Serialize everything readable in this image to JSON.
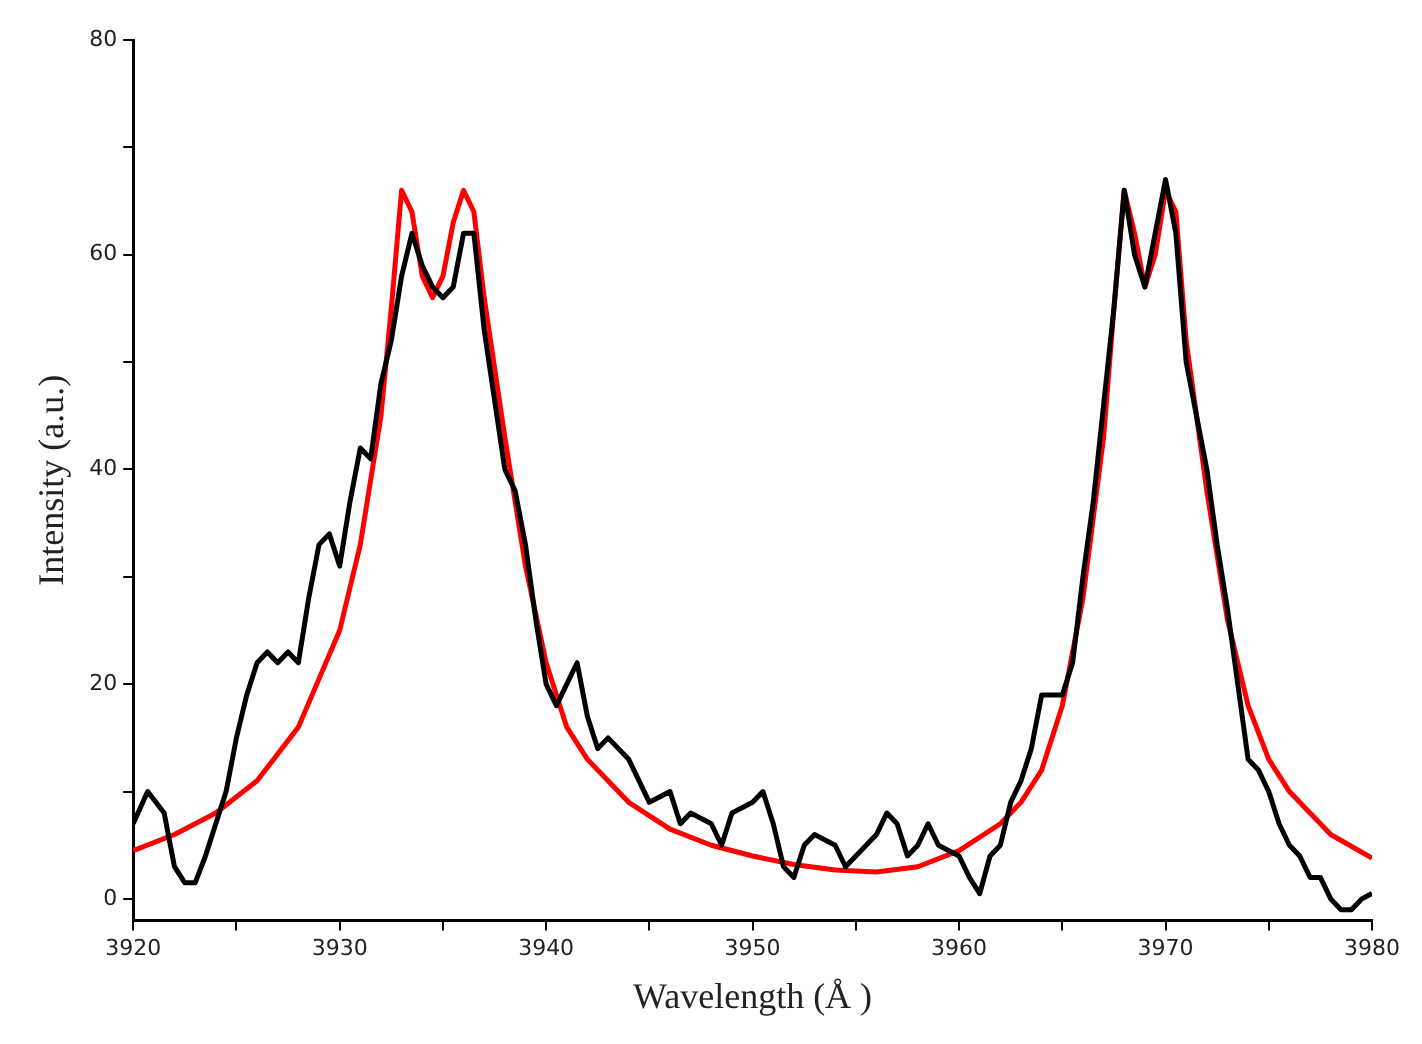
{
  "chart_data": {
    "type": "line",
    "xlabel": "Wavelength (Å )",
    "ylabel": "Intensity (a.u.)",
    "xlim": [
      3920,
      3980
    ],
    "ylim": [
      -2,
      80
    ],
    "xticks": [
      3920,
      {
        "value": 3925,
        "label": null
      },
      3930,
      {
        "value": 3935,
        "label": null
      },
      3940,
      {
        "value": 3945,
        "label": null
      },
      3950,
      {
        "value": 3955,
        "label": null
      },
      3960,
      {
        "value": 3965,
        "label": null
      },
      3970,
      {
        "value": 3975,
        "label": null
      },
      3980
    ],
    "yticks": [
      0,
      {
        "value": 10,
        "label": null
      },
      20,
      {
        "value": 30,
        "label": null
      },
      40,
      {
        "value": 50,
        "label": null
      },
      60,
      {
        "value": 70,
        "label": null
      },
      80
    ],
    "grid": false,
    "legend": false,
    "marker": "none",
    "line_style": "solid",
    "series": [
      {
        "color": "#000000",
        "x": [
          3920,
          3920.7,
          3921.5,
          3922,
          3922.5,
          3923,
          3923.5,
          3924,
          3924.5,
          3925,
          3925.5,
          3926,
          3926.5,
          3927,
          3927.5,
          3928,
          3928.5,
          3929,
          3929.5,
          3930,
          3930.5,
          3931,
          3931.5,
          3932,
          3932.5,
          3933,
          3933.5,
          3934,
          3934.5,
          3935,
          3935.5,
          3936,
          3936.5,
          3937,
          3938,
          3938.5,
          3939,
          3939.5,
          3940,
          3940.5,
          3941,
          3941.5,
          3942,
          3942.5,
          3943,
          3944,
          3945,
          3946,
          3946.5,
          3947,
          3948,
          3948.5,
          3949,
          3950,
          3950.5,
          3951,
          3951.5,
          3952,
          3952.5,
          3953,
          3954,
          3954.5,
          3955,
          3956,
          3956.5,
          3957,
          3957.5,
          3958,
          3958.5,
          3959,
          3960,
          3960.5,
          3961,
          3961.5,
          3962,
          3962.5,
          3963,
          3963.5,
          3964,
          3964.5,
          3965,
          3965.5,
          3966,
          3966.5,
          3967,
          3967.5,
          3968,
          3968.5,
          3969,
          3969.5,
          3970,
          3970.5,
          3971,
          3971.5,
          3972,
          3972.5,
          3973,
          3973.5,
          3974,
          3974.5,
          3975,
          3975.5,
          3976,
          3976.5,
          3977,
          3977.5,
          3978,
          3978.5,
          3979,
          3979.5,
          3980
        ],
        "values": [
          7,
          10,
          8,
          3,
          1.5,
          1.5,
          4,
          7,
          10,
          15,
          19,
          22,
          23,
          22,
          23,
          22,
          28,
          33,
          34,
          31,
          37,
          42,
          41,
          48,
          52,
          58,
          62,
          59,
          57,
          56,
          57,
          62,
          62,
          53,
          40,
          38,
          33,
          26,
          20,
          18,
          20,
          22,
          17,
          14,
          15,
          13,
          9,
          10,
          7,
          8,
          7,
          5,
          8,
          9,
          10,
          7,
          3,
          2,
          5,
          6,
          5,
          3,
          4,
          6,
          8,
          7,
          4,
          5,
          7,
          5,
          4,
          2,
          0.5,
          4,
          5,
          9,
          11,
          14,
          19,
          19,
          19,
          22,
          30,
          37,
          46,
          55,
          66,
          60,
          57,
          62,
          67,
          62,
          50,
          45,
          40,
          33,
          27,
          20,
          13,
          12,
          10,
          7,
          5,
          4,
          2,
          2,
          0,
          -1,
          -1,
          0,
          0.5
        ]
      },
      {
        "color": "#ff0000",
        "x": [
          3920,
          3922,
          3924,
          3926,
          3928,
          3930,
          3931,
          3932,
          3932.5,
          3933,
          3933.5,
          3934,
          3934.5,
          3935,
          3935.5,
          3936,
          3936.5,
          3937,
          3938,
          3939,
          3940,
          3941,
          3942,
          3944,
          3946,
          3948,
          3950,
          3952,
          3954,
          3956,
          3958,
          3960,
          3962,
          3963,
          3964,
          3965,
          3966,
          3967,
          3967.5,
          3968,
          3968.5,
          3969,
          3969.5,
          3970,
          3970.5,
          3971,
          3972,
          3973,
          3974,
          3975,
          3976,
          3978,
          3980
        ],
        "values": [
          4.5,
          6,
          8,
          11,
          16,
          25,
          33,
          45,
          55,
          66,
          64,
          58,
          56,
          58,
          63,
          66,
          64,
          56,
          43,
          31,
          22,
          16,
          13,
          9,
          6.5,
          5,
          4,
          3.2,
          2.7,
          2.5,
          3,
          4.5,
          7,
          9,
          12,
          18,
          28,
          43,
          55,
          66,
          62,
          57,
          60,
          66,
          64,
          52,
          38,
          26,
          18,
          13,
          10,
          6,
          3.8
        ]
      }
    ]
  }
}
